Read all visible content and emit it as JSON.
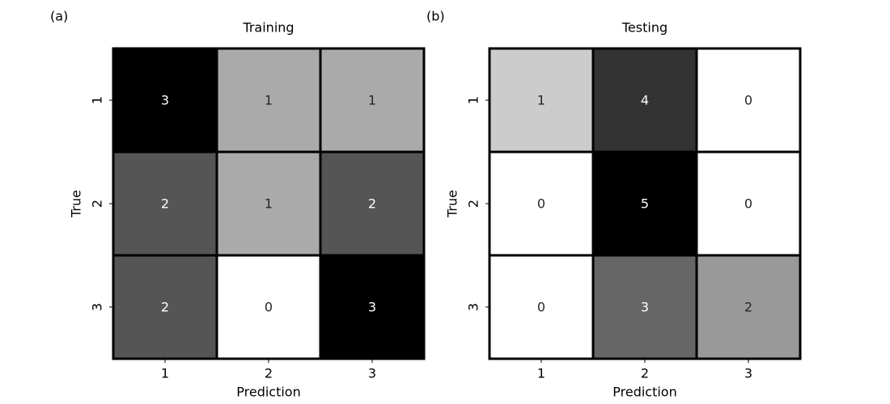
{
  "chart_data": [
    {
      "panel": "(a)",
      "type": "heatmap",
      "title": "Training",
      "xlabel": "Prediction",
      "ylabel": "True",
      "x_categories": [
        "1",
        "2",
        "3"
      ],
      "y_categories": [
        "1",
        "2",
        "3"
      ],
      "values": [
        [
          3,
          1,
          1
        ],
        [
          2,
          1,
          2
        ],
        [
          2,
          0,
          3
        ]
      ],
      "colormap": "grayscale, higher value = darker",
      "grid": false
    },
    {
      "panel": "(b)",
      "type": "heatmap",
      "title": "Testing",
      "xlabel": "Prediction",
      "ylabel": "True",
      "x_categories": [
        "1",
        "2",
        "3"
      ],
      "y_categories": [
        "1",
        "2",
        "3"
      ],
      "values": [
        [
          1,
          4,
          0
        ],
        [
          0,
          5,
          0
        ],
        [
          0,
          3,
          2
        ]
      ],
      "colormap": "grayscale, higher value = darker",
      "grid": false
    }
  ]
}
